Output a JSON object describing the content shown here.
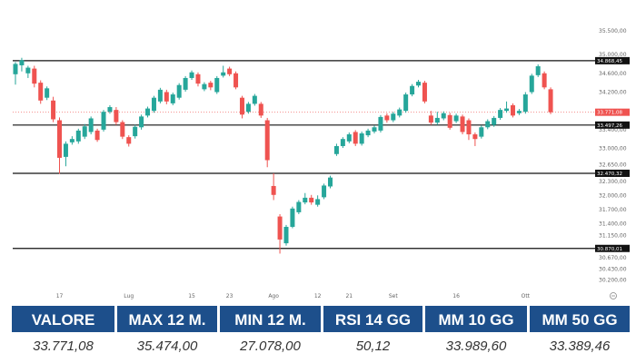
{
  "chart_data": {
    "type": "candlestick",
    "y_axis": {
      "position": "right",
      "ylim": [
        30015,
        35620
      ],
      "ticks": [
        "35.500,00",
        "35.000,00",
        "34.600,00",
        "34.200,00",
        "33.400,00",
        "33.000,00",
        "32.650,00",
        "32.300,00",
        "32.000,00",
        "31.700,00",
        "31.400,00",
        "31.150,00",
        "30.670,00",
        "30.430,00",
        "30.200,00"
      ],
      "tick_values": [
        35500,
        35000,
        34600,
        34200,
        33400,
        33000,
        32650,
        32300,
        32000,
        31700,
        31400,
        31150,
        30670,
        30430,
        30200
      ]
    },
    "x_labels": [
      {
        "label": "17",
        "index": 7
      },
      {
        "label": "Lug",
        "index": 18
      },
      {
        "label": "15",
        "index": 28
      },
      {
        "label": "23",
        "index": 34
      },
      {
        "label": "Ago",
        "index": 41
      },
      {
        "label": "12",
        "index": 48
      },
      {
        "label": "21",
        "index": 53
      },
      {
        "label": "Set",
        "index": 60
      },
      {
        "label": "16",
        "index": 70
      },
      {
        "label": "Ott",
        "index": 81
      }
    ],
    "levels": [
      {
        "value": 34868.45,
        "label": "34.868,45",
        "style": "line"
      },
      {
        "value": 33497.26,
        "label": "33.497,26",
        "style": "line"
      },
      {
        "value": 32470.32,
        "label": "32.470,32",
        "style": "line"
      },
      {
        "value": 30870.01,
        "label": "30.870,01",
        "style": "line"
      },
      {
        "value": 33771.08,
        "label": "33.771,08",
        "style": "last-price"
      }
    ],
    "candles": [
      {
        "o": 34580,
        "c": 34800,
        "h": 34840,
        "l": 34360
      },
      {
        "o": 34770,
        "c": 34880,
        "h": 34930,
        "l": 34640
      },
      {
        "o": 34600,
        "c": 34720,
        "h": 34760,
        "l": 34500
      },
      {
        "o": 34700,
        "c": 34380,
        "h": 34760,
        "l": 34300
      },
      {
        "o": 34400,
        "c": 34020,
        "h": 34450,
        "l": 33950
      },
      {
        "o": 34080,
        "c": 34280,
        "h": 34320,
        "l": 34030
      },
      {
        "o": 34020,
        "c": 33620,
        "h": 34100,
        "l": 33560
      },
      {
        "o": 33600,
        "c": 32800,
        "h": 33660,
        "l": 32460
      },
      {
        "o": 32820,
        "c": 33100,
        "h": 33150,
        "l": 32620
      },
      {
        "o": 33130,
        "c": 33200,
        "h": 33260,
        "l": 33080
      },
      {
        "o": 33150,
        "c": 33380,
        "h": 33420,
        "l": 33100
      },
      {
        "o": 33250,
        "c": 33470,
        "h": 33520,
        "l": 33200
      },
      {
        "o": 33350,
        "c": 33640,
        "h": 33680,
        "l": 33300
      },
      {
        "o": 33380,
        "c": 33180,
        "h": 33420,
        "l": 33140
      },
      {
        "o": 33400,
        "c": 33780,
        "h": 33820,
        "l": 33360
      },
      {
        "o": 33780,
        "c": 33880,
        "h": 33920,
        "l": 33740
      },
      {
        "o": 33820,
        "c": 33560,
        "h": 33880,
        "l": 33500
      },
      {
        "o": 33560,
        "c": 33250,
        "h": 33600,
        "l": 33200
      },
      {
        "o": 33240,
        "c": 33100,
        "h": 33280,
        "l": 33040
      },
      {
        "o": 33260,
        "c": 33460,
        "h": 33500,
        "l": 33210
      },
      {
        "o": 33450,
        "c": 33680,
        "h": 33720,
        "l": 33400
      },
      {
        "o": 33700,
        "c": 33850,
        "h": 33890,
        "l": 33660
      },
      {
        "o": 33800,
        "c": 34080,
        "h": 34120,
        "l": 33760
      },
      {
        "o": 34000,
        "c": 34250,
        "h": 34290,
        "l": 33960
      },
      {
        "o": 34200,
        "c": 34000,
        "h": 34250,
        "l": 33940
      },
      {
        "o": 33960,
        "c": 34150,
        "h": 34190,
        "l": 33920
      },
      {
        "o": 34080,
        "c": 34350,
        "h": 34390,
        "l": 34040
      },
      {
        "o": 34250,
        "c": 34500,
        "h": 34540,
        "l": 34210
      },
      {
        "o": 34500,
        "c": 34620,
        "h": 34660,
        "l": 34460
      },
      {
        "o": 34580,
        "c": 34380,
        "h": 34620,
        "l": 34320
      },
      {
        "o": 34260,
        "c": 34370,
        "h": 34410,
        "l": 34220
      },
      {
        "o": 34400,
        "c": 34300,
        "h": 34440,
        "l": 34240
      },
      {
        "o": 34200,
        "c": 34500,
        "h": 34540,
        "l": 34160
      },
      {
        "o": 34550,
        "c": 34620,
        "h": 34760,
        "l": 34510
      },
      {
        "o": 34700,
        "c": 34580,
        "h": 34740,
        "l": 34540
      },
      {
        "o": 34600,
        "c": 34300,
        "h": 34640,
        "l": 34260
      },
      {
        "o": 34080,
        "c": 33720,
        "h": 34120,
        "l": 33640
      },
      {
        "o": 33780,
        "c": 33950,
        "h": 33990,
        "l": 33740
      },
      {
        "o": 33950,
        "c": 34120,
        "h": 34160,
        "l": 33910
      },
      {
        "o": 33950,
        "c": 33700,
        "h": 33990,
        "l": 33650
      },
      {
        "o": 33600,
        "c": 32750,
        "h": 33650,
        "l": 32600
      },
      {
        "o": 32200,
        "c": 32010,
        "h": 32470,
        "l": 31900
      },
      {
        "o": 31550,
        "c": 31060,
        "h": 31600,
        "l": 30760
      },
      {
        "o": 30980,
        "c": 31330,
        "h": 31370,
        "l": 30930
      },
      {
        "o": 31330,
        "c": 31720,
        "h": 31760,
        "l": 31300
      },
      {
        "o": 31640,
        "c": 31860,
        "h": 31900,
        "l": 31600
      },
      {
        "o": 31850,
        "c": 31950,
        "h": 32050,
        "l": 31810
      },
      {
        "o": 31950,
        "c": 31850,
        "h": 32010,
        "l": 31800
      },
      {
        "o": 31800,
        "c": 31920,
        "h": 32000,
        "l": 31760
      },
      {
        "o": 31960,
        "c": 32210,
        "h": 32250,
        "l": 31920
      },
      {
        "o": 32190,
        "c": 32380,
        "h": 32420,
        "l": 32150
      },
      {
        "o": 32880,
        "c": 33050,
        "h": 33100,
        "l": 32840
      },
      {
        "o": 33050,
        "c": 33200,
        "h": 33240,
        "l": 33010
      },
      {
        "o": 33150,
        "c": 33300,
        "h": 33340,
        "l": 33110
      },
      {
        "o": 33350,
        "c": 33100,
        "h": 33390,
        "l": 33050
      },
      {
        "o": 33100,
        "c": 33320,
        "h": 33360,
        "l": 33060
      },
      {
        "o": 33280,
        "c": 33380,
        "h": 33420,
        "l": 33240
      },
      {
        "o": 33360,
        "c": 33450,
        "h": 33490,
        "l": 33320
      },
      {
        "o": 33380,
        "c": 33670,
        "h": 33710,
        "l": 33340
      },
      {
        "o": 33700,
        "c": 33600,
        "h": 33750,
        "l": 33550
      },
      {
        "o": 33600,
        "c": 33740,
        "h": 33780,
        "l": 33560
      },
      {
        "o": 33700,
        "c": 33830,
        "h": 33870,
        "l": 33660
      },
      {
        "o": 33800,
        "c": 34150,
        "h": 34190,
        "l": 33760
      },
      {
        "o": 34150,
        "c": 34330,
        "h": 34370,
        "l": 34110
      },
      {
        "o": 34340,
        "c": 34420,
        "h": 34460,
        "l": 34300
      },
      {
        "o": 34400,
        "c": 34000,
        "h": 34440,
        "l": 33960
      },
      {
        "o": 33700,
        "c": 33550,
        "h": 33800,
        "l": 33500
      },
      {
        "o": 33550,
        "c": 33650,
        "h": 33780,
        "l": 33500
      },
      {
        "o": 33640,
        "c": 33750,
        "h": 33790,
        "l": 33600
      },
      {
        "o": 33710,
        "c": 33440,
        "h": 33760,
        "l": 33400
      },
      {
        "o": 33580,
        "c": 33700,
        "h": 33740,
        "l": 33540
      },
      {
        "o": 33680,
        "c": 33350,
        "h": 33720,
        "l": 33300
      },
      {
        "o": 33600,
        "c": 33300,
        "h": 33640,
        "l": 33180
      },
      {
        "o": 33300,
        "c": 33200,
        "h": 33340,
        "l": 33050
      },
      {
        "o": 33250,
        "c": 33450,
        "h": 33490,
        "l": 33210
      },
      {
        "o": 33450,
        "c": 33580,
        "h": 33620,
        "l": 33410
      },
      {
        "o": 33500,
        "c": 33650,
        "h": 33690,
        "l": 33460
      },
      {
        "o": 33650,
        "c": 33820,
        "h": 33860,
        "l": 33610
      },
      {
        "o": 33800,
        "c": 33850,
        "h": 34000,
        "l": 33760
      },
      {
        "o": 33920,
        "c": 33700,
        "h": 33960,
        "l": 33660
      },
      {
        "o": 33750,
        "c": 33800,
        "h": 33840,
        "l": 33710
      },
      {
        "o": 33780,
        "c": 34150,
        "h": 34200,
        "l": 33740
      },
      {
        "o": 34200,
        "c": 34550,
        "h": 34590,
        "l": 34160
      },
      {
        "o": 34560,
        "c": 34750,
        "h": 34790,
        "l": 34520
      },
      {
        "o": 34600,
        "c": 34300,
        "h": 34640,
        "l": 34260
      },
      {
        "o": 34260,
        "c": 33771,
        "h": 34300,
        "l": 33730
      }
    ]
  },
  "colors": {
    "up": "#26a69a",
    "down": "#ef5350",
    "level_line": "#111111",
    "header_bg": "#1d4f8b"
  },
  "table": {
    "headers": [
      "VALORE",
      "MAX 12 M.",
      "MIN 12 M.",
      "RSI 14 GG",
      "MM 10 GG",
      "MM 50 GG"
    ],
    "values": [
      "33.771,08",
      "35.474,00",
      "27.078,00",
      "50,12",
      "33.989,60",
      "33.389,46"
    ]
  },
  "zoom_icon": "zoom-out-icon"
}
